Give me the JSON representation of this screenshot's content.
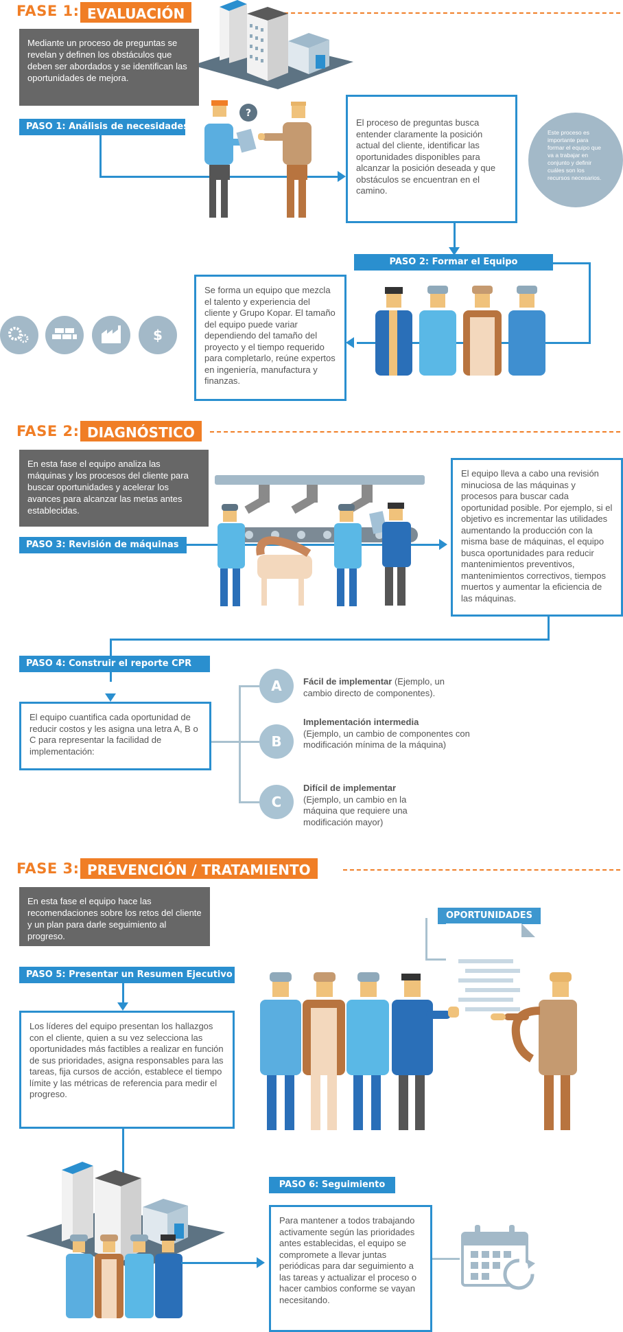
{
  "fase1": {
    "label": "FASE 1:",
    "title": "EVALUACIÓN",
    "intro": "Mediante un proceso de preguntas se revelan y definen los obstáculos que deben ser abordados y se identifican las oportunidades de mejora.",
    "paso1": {
      "label": "PASO 1: Análisis de necesidades.",
      "text": "El proceso de preguntas busca entender claramente la posición actual del cliente, identificar las oportunidades disponibles para alcanzar la posición deseada y que obstáculos se encuentran en el camino.",
      "bubble_question": "?",
      "note": "Este proceso es importante para formar el equipo que va a trabajar en conjunto y definir cuáles son los recursos necesarios."
    },
    "paso2": {
      "label": "PASO 2:  Formar el Equipo",
      "text": "Se forma un equipo que mezcla el talento y experiencia del cliente y Grupo Kopar. El tamaño del equipo puede variar dependiendo del tamaño del proyecto y el tiempo requerido para completarlo, reúne expertos en ingeniería, manufactura y finanzas.",
      "dollar": "$"
    }
  },
  "fase2": {
    "label": "FASE 2:",
    "title": "DIAGNÓSTICO",
    "intro": "En esta fase el equipo analiza las máquinas y los procesos del cliente para buscar oportunidades y acelerar los avances para alcanzar las metas antes establecidas.",
    "paso3": {
      "label": "PASO 3:  Revisión de máquinas",
      "text": "El equipo lleva a cabo una revisión minuciosa de las máquinas y procesos para buscar cada oportunidad posible. Por ejemplo, si el objetivo es incrementar las utilidades aumentando la producción con la misma base de máquinas, el equipo busca oportunidades para reducir mantenimientos preventivos, mantenimientos correctivos, tiempos muertos y aumentar la eficiencia de las máquinas."
    },
    "paso4": {
      "label": "PASO 4:  Construir el reporte CPR",
      "text": "El equipo cuantifica cada oportunidad de reducir costos y les asigna una letra A, B o C para representar la facilidad de implementación:",
      "options": [
        {
          "letter": "A",
          "title": "Fácil de implementar",
          "desc": " (Ejemplo, un cambio directo de componentes)."
        },
        {
          "letter": "B",
          "title": "Implementación intermedia",
          "desc": "(Ejemplo, un cambio de componentes con modificación mínima de la máquina)"
        },
        {
          "letter": "C",
          "title": "Difícil de implementar",
          "desc": "(Ejemplo, un cambio en la máquina que requiere una modificación mayor)"
        }
      ]
    }
  },
  "fase3": {
    "label": "FASE 3:",
    "title": "PREVENCIÓN / TRATAMIENTO",
    "intro": "En esta fase el equipo hace las recomendaciones sobre los retos del cliente y un plan para darle seguimiento al progreso.",
    "paso5": {
      "label": "PASO 5:  Presentar un Resumen Ejecutivo",
      "text": "Los líderes del equipo presentan  los hallazgos con el cliente, quien a su vez selecciona las oportunidades más factibles a realizar en función de sus prioridades, asigna responsables para las tareas, fija cursos de acción, establece el tiempo límite y las métricas de referencia para medir el progreso.",
      "doc_title": "OPORTUNIDADES"
    },
    "paso6": {
      "label": "PASO 6:  Seguimiento",
      "text": "Para mantener a todos trabajando activamente según las prioridades antes establecidas, el equipo se compromete a llevar juntas periódicas para dar seguimiento a las tareas y actualizar el proceso o hacer cambios conforme se vayan necesitando."
    }
  },
  "colors": {
    "orange": "#f07e26",
    "blue": "#2a8fcf",
    "gray_box": "#676767",
    "light_blue_gray": "#a3b9c8"
  },
  "icons": [
    "gears-icon",
    "bricks-icon",
    "factory-icon",
    "dollar-icon",
    "calendar-refresh-icon",
    "buildings-icon",
    "question-bubble-icon"
  ]
}
